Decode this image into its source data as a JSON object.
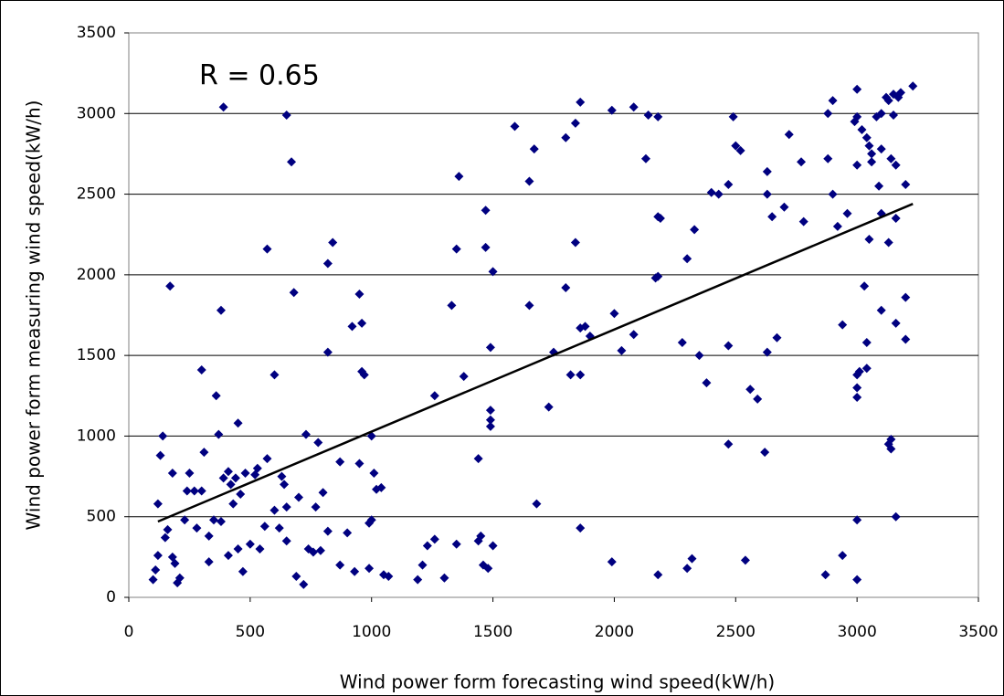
{
  "chart_data": {
    "type": "scatter",
    "annotation": "R = 0.65",
    "xlabel": "Wind power form forecasting wind speed(kW/h)",
    "ylabel": "Wind power form measuring wind speed(kW/h)",
    "xlim": [
      0,
      3500
    ],
    "xticks": [
      0,
      500,
      1000,
      1500,
      2000,
      2500,
      3000,
      3500
    ],
    "ylim": [
      0,
      3500
    ],
    "yticks": [
      0,
      500,
      1000,
      1500,
      2000,
      2500,
      3000,
      3500
    ],
    "grid": true,
    "color": "#000080",
    "trendline_color": "#000000",
    "trendline": {
      "x": [
        120,
        3230
      ],
      "y": [
        470,
        2440
      ]
    },
    "x": [
      2880,
      2900,
      3000,
      3000,
      3020,
      3040,
      3060,
      3080,
      3100,
      3120,
      3130,
      3150,
      3170,
      3230,
      3180,
      3150,
      3100,
      3060,
      3000,
      2990,
      3050,
      3090,
      3140,
      3160,
      3200,
      3100,
      3050,
      3130,
      3160,
      2960,
      2900,
      2920,
      2880,
      2720,
      2770,
      2780,
      2700,
      2630,
      2630,
      2650,
      2500,
      2520,
      2490,
      2470,
      2430,
      2400,
      2300,
      2330,
      2190,
      2180,
      2180,
      2140,
      2130,
      2080,
      1990,
      1860,
      1840,
      1800,
      1670,
      1650,
      1590,
      1360,
      1470,
      1470,
      1500,
      1350,
      1330,
      1840,
      1800,
      1860,
      1880,
      1650,
      1750,
      1900,
      2000,
      2030,
      2080,
      2170,
      2180,
      1820,
      1860,
      1730,
      1490,
      1490,
      1490,
      1490,
      1380,
      1260,
      1440,
      2280,
      2350,
      2380,
      2470,
      2560,
      2590,
      2620,
      2470,
      2630,
      2670,
      2940,
      3010,
      3000,
      3000,
      3000,
      3040,
      3040,
      3030,
      3100,
      3160,
      3200,
      3200,
      3130,
      3140,
      3140,
      3160,
      3000,
      2940,
      3000,
      2870,
      2540,
      2320,
      2300,
      2180,
      1990,
      1860,
      1680,
      1500,
      1480,
      1460,
      1440,
      1450,
      1350,
      1300,
      1260,
      1230,
      1210,
      1190,
      1070,
      1040,
      1010,
      1000,
      1000,
      990,
      970,
      960,
      960,
      950,
      920,
      870,
      840,
      820,
      820,
      800,
      780,
      770,
      760,
      740,
      720,
      690,
      680,
      670,
      650,
      640,
      630,
      620,
      600,
      570,
      560,
      530,
      520,
      500,
      460,
      450,
      440,
      420,
      410,
      390,
      380,
      370,
      360,
      350,
      330,
      300,
      300,
      280,
      250,
      230,
      200,
      190,
      180,
      170,
      150,
      140,
      130,
      120,
      120,
      110,
      100,
      180,
      210,
      160,
      240,
      270,
      310,
      330,
      380,
      390,
      410,
      430,
      450,
      470,
      480,
      540,
      570,
      600,
      650,
      650,
      700,
      730,
      790,
      820,
      870,
      900,
      930,
      950,
      990,
      1020,
      1050
    ],
    "y": [
      3000,
      3080,
      3150,
      2980,
      2900,
      2850,
      2750,
      2980,
      3000,
      3100,
      3080,
      3120,
      3100,
      3170,
      3130,
      2990,
      2780,
      2700,
      2680,
      2950,
      2800,
      2550,
      2720,
      2680,
      2560,
      2380,
      2220,
      2200,
      2350,
      2380,
      2500,
      2300,
      2720,
      2870,
      2700,
      2330,
      2420,
      2640,
      2500,
      2360,
      2800,
      2770,
      2980,
      2560,
      2500,
      2510,
      2100,
      2280,
      2350,
      2360,
      2980,
      2990,
      2720,
      3040,
      3020,
      3070,
      2940,
      2850,
      2780,
      2580,
      2920,
      2610,
      2400,
      2170,
      2020,
      2160,
      1810,
      2200,
      1920,
      1670,
      1680,
      1810,
      1520,
      1620,
      1760,
      1530,
      1630,
      1980,
      1990,
      1380,
      1380,
      1180,
      1550,
      1160,
      1100,
      1060,
      1370,
      1250,
      860,
      1580,
      1500,
      1330,
      1560,
      1290,
      1230,
      900,
      950,
      1520,
      1610,
      1690,
      1400,
      1380,
      1300,
      1240,
      1420,
      1580,
      1930,
      1780,
      1700,
      1860,
      1600,
      950,
      920,
      980,
      500,
      480,
      260,
      110,
      140,
      230,
      240,
      180,
      140,
      220,
      430,
      580,
      320,
      180,
      200,
      350,
      380,
      330,
      120,
      360,
      320,
      200,
      110,
      130,
      680,
      770,
      1000,
      480,
      460,
      1380,
      1400,
      1700,
      1880,
      1680,
      840,
      2200,
      2070,
      1520,
      650,
      960,
      560,
      280,
      300,
      80,
      130,
      1890,
      2700,
      2990,
      700,
      750,
      430,
      1380,
      2160,
      440,
      800,
      760,
      330,
      640,
      1080,
      740,
      700,
      260,
      3040,
      1780,
      1010,
      1250,
      480,
      380,
      1410,
      660,
      430,
      770,
      480,
      90,
      210,
      770,
      1930,
      370,
      1000,
      880,
      580,
      260,
      170,
      110,
      250,
      120,
      420,
      660,
      660,
      900,
      220,
      470,
      740,
      780,
      580,
      300,
      160,
      770,
      300,
      860,
      540,
      560,
      350,
      620,
      1010,
      290,
      410,
      200,
      400,
      160,
      830,
      180,
      670,
      140
    ]
  }
}
